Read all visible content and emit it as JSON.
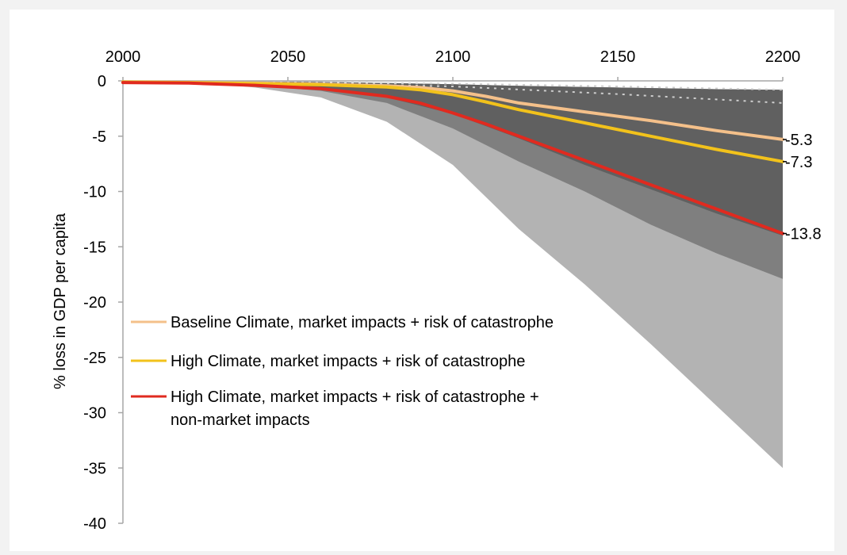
{
  "chart_data": {
    "type": "area",
    "title": "",
    "xlabel": "",
    "ylabel": "% loss in GDP per capita",
    "xlim": [
      2000,
      2200
    ],
    "ylim": [
      -40,
      0
    ],
    "x_ticks": [
      "2000",
      "2050",
      "2100",
      "2150",
      "2200"
    ],
    "y_ticks": [
      "0",
      "-5",
      "-10",
      "-15",
      "-20",
      "-25",
      "-30",
      "-35",
      "-40"
    ],
    "x_axis_position": "top",
    "grid": false,
    "legend_position": "lower-left",
    "bands": [
      {
        "color": "#b3b3b3",
        "x": [
          2000,
          2020,
          2040,
          2060,
          2080,
          2100,
          2120,
          2140,
          2160,
          2180,
          2200
        ],
        "upper": [
          0,
          0,
          -0.05,
          -0.1,
          -0.2,
          -0.3,
          -0.45,
          -0.55,
          -0.65,
          -0.75,
          -0.8
        ],
        "lower": [
          0,
          -0.05,
          -0.6,
          -1.5,
          -3.7,
          -7.6,
          -13.4,
          -18.4,
          -23.8,
          -29.4,
          -35.0
        ]
      },
      {
        "color": "#7f7f7f",
        "x": [
          2000,
          2020,
          2040,
          2060,
          2080,
          2100,
          2120,
          2140,
          2160,
          2180,
          2200
        ],
        "upper": [
          0,
          0,
          -0.05,
          -0.1,
          -0.2,
          -0.3,
          -0.45,
          -0.55,
          -0.65,
          -0.75,
          -0.8
        ],
        "lower": [
          0,
          -0.05,
          -0.4,
          -0.9,
          -2.0,
          -4.3,
          -7.3,
          -10.0,
          -13.0,
          -15.6,
          -17.9
        ]
      },
      {
        "color": "#606060",
        "x": [
          2000,
          2020,
          2040,
          2060,
          2080,
          2100,
          2120,
          2140,
          2160,
          2180,
          2200
        ],
        "upper": [
          0,
          0,
          -0.05,
          -0.1,
          -0.2,
          -0.3,
          -0.45,
          -0.55,
          -0.65,
          -0.75,
          -0.8
        ],
        "lower": [
          0,
          -0.05,
          -0.3,
          -0.7,
          -1.5,
          -3.0,
          -5.2,
          -7.6,
          -9.8,
          -12.0,
          -14.0
        ]
      }
    ],
    "reference_lines": [
      {
        "style": "dotted",
        "color": "#cfcfcf",
        "x": [
          2000,
          2050,
          2100,
          2150,
          2200
        ],
        "y": [
          -0.1,
          -0.15,
          -0.25,
          -0.5,
          -0.8
        ]
      },
      {
        "style": "dotted",
        "color": "#cfcfcf",
        "x": [
          2000,
          2050,
          2100,
          2150,
          2200
        ],
        "y": [
          -0.1,
          -0.2,
          -0.5,
          -1.2,
          -2.0
        ]
      }
    ],
    "series": [
      {
        "name": "Baseline Climate, market impacts + risk of catastrophe",
        "color": "#f4c08a",
        "x": [
          2000,
          2020,
          2040,
          2060,
          2080,
          2090,
          2100,
          2110,
          2120,
          2140,
          2160,
          2180,
          2200
        ],
        "y": [
          -0.1,
          -0.15,
          -0.2,
          -0.3,
          -0.45,
          -0.6,
          -0.9,
          -1.4,
          -2.0,
          -2.8,
          -3.6,
          -4.5,
          -5.3
        ],
        "end_label": "-5.3"
      },
      {
        "name": "High Climate, market impacts + risk of catastrophe",
        "color": "#f2c21b",
        "x": [
          2000,
          2020,
          2040,
          2060,
          2080,
          2090,
          2100,
          2110,
          2120,
          2140,
          2160,
          2180,
          2200
        ],
        "y": [
          -0.1,
          -0.15,
          -0.25,
          -0.35,
          -0.55,
          -0.8,
          -1.25,
          -1.9,
          -2.6,
          -3.8,
          -5.0,
          -6.2,
          -7.3
        ],
        "end_label": "-7.3"
      },
      {
        "name": "High Climate, market impacts + risk of catastrophe + non-market impacts",
        "legend_lines": [
          "High Climate, market impacts + risk of catastrophe +",
          "non-market impacts"
        ],
        "color": "#e02a1f",
        "x": [
          2000,
          2020,
          2040,
          2060,
          2080,
          2090,
          2100,
          2110,
          2120,
          2140,
          2160,
          2180,
          2200
        ],
        "y": [
          -0.15,
          -0.2,
          -0.4,
          -0.7,
          -1.4,
          -2.0,
          -2.9,
          -3.9,
          -5.0,
          -7.2,
          -9.4,
          -11.6,
          -13.8
        ],
        "end_label": "-13.8"
      }
    ]
  }
}
